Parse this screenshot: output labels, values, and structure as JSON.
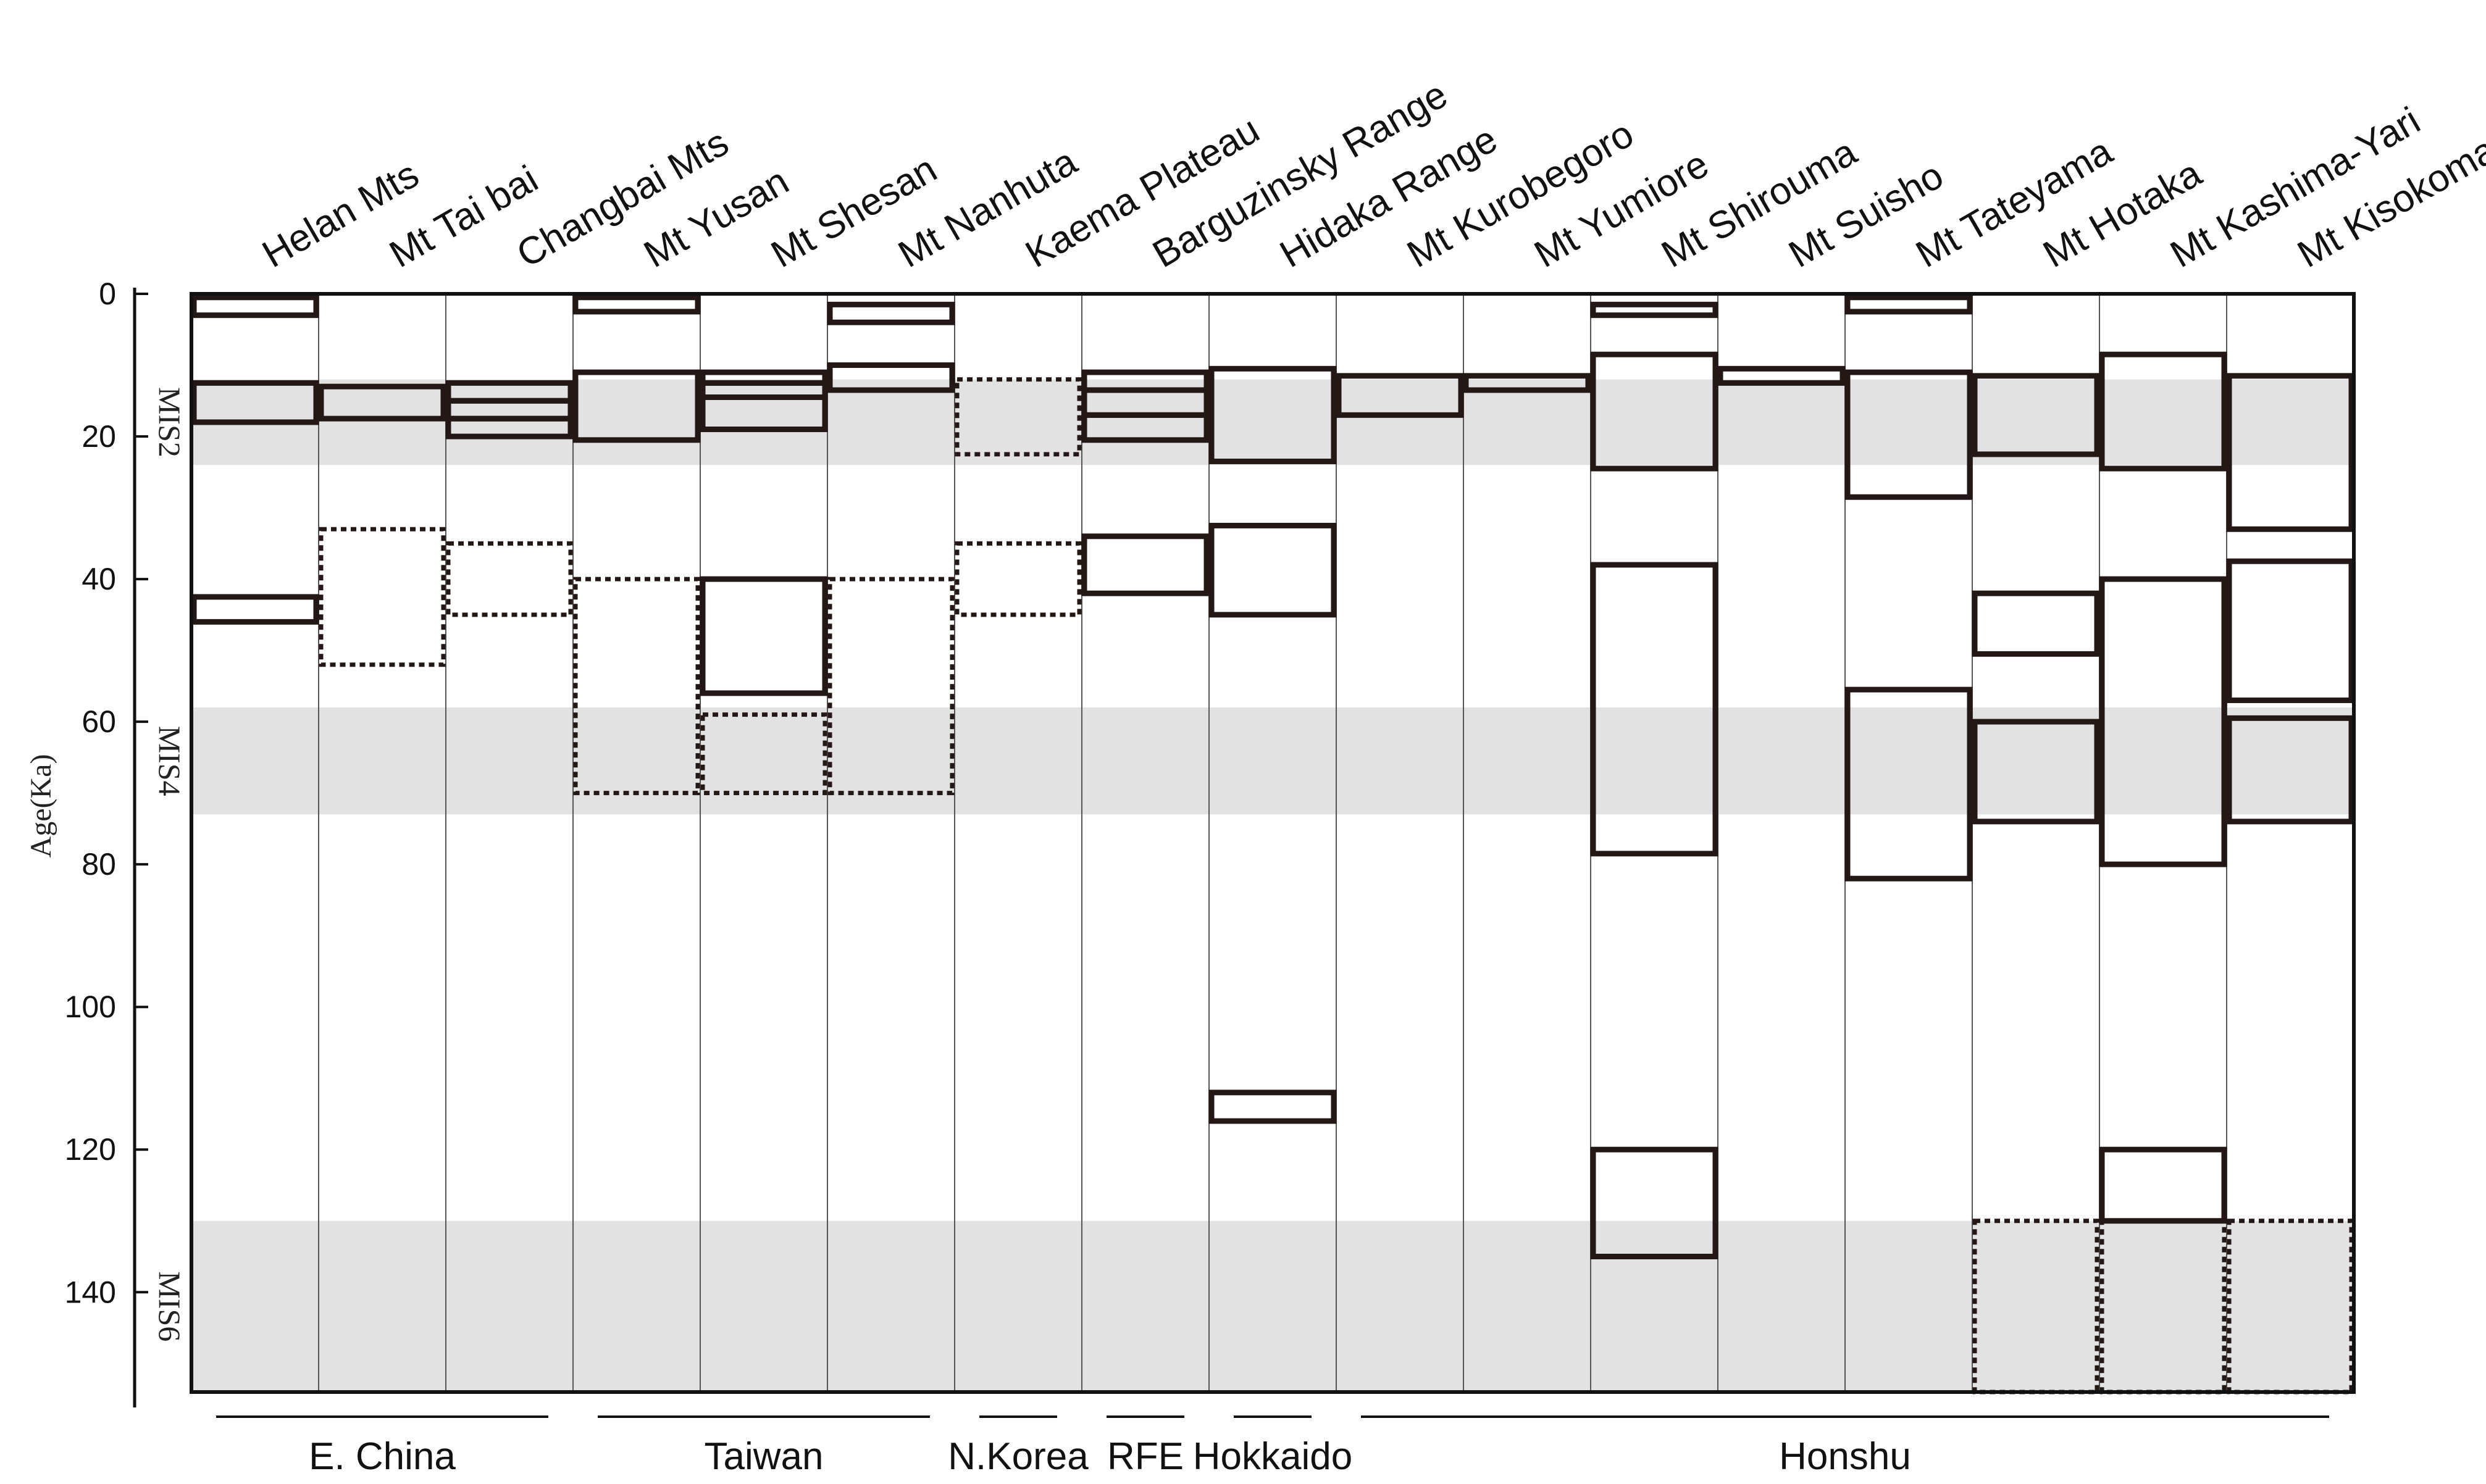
{
  "chart_data": {
    "type": "glaciation-chronology",
    "ylabel": "Age(Ka)",
    "ylim": [
      0,
      154
    ],
    "yticks": [
      0,
      20,
      40,
      60,
      80,
      100,
      120,
      140
    ],
    "mis_bands": [
      {
        "label": "MIS2",
        "from": 12,
        "to": 24
      },
      {
        "label": "MIS4",
        "from": 58,
        "to": 73
      },
      {
        "label": "MIS6",
        "from": 130,
        "to": 154
      }
    ],
    "columns": [
      {
        "name": "Helan Mts",
        "boxes": [
          {
            "from": 0.5,
            "to": 3,
            "style": "solid"
          },
          {
            "from": 12.5,
            "to": 18,
            "style": "solid"
          },
          {
            "from": 42.5,
            "to": 46,
            "style": "solid"
          }
        ]
      },
      {
        "name": "Mt Tai bai",
        "boxes": [
          {
            "from": 13,
            "to": 17.5,
            "style": "solid"
          },
          {
            "from": 33,
            "to": 52,
            "style": "dotted"
          }
        ]
      },
      {
        "name": "Changbai Mts",
        "boxes": [
          {
            "from": 12.5,
            "to": 15,
            "style": "solid"
          },
          {
            "from": 15,
            "to": 17.5,
            "style": "solid"
          },
          {
            "from": 17.5,
            "to": 20,
            "style": "solid"
          },
          {
            "from": 35,
            "to": 45,
            "style": "dotted"
          }
        ]
      },
      {
        "name": "Mt Yusan",
        "boxes": [
          {
            "from": 0.5,
            "to": 2.5,
            "style": "solid"
          },
          {
            "from": 11,
            "to": 20.5,
            "style": "solid"
          },
          {
            "from": 40,
            "to": 70,
            "style": "dotted"
          }
        ]
      },
      {
        "name": "Mt Shesan",
        "boxes": [
          {
            "from": 11,
            "to": 12.5,
            "style": "solid"
          },
          {
            "from": 12.5,
            "to": 14.5,
            "style": "solid"
          },
          {
            "from": 14.5,
            "to": 19,
            "style": "solid"
          },
          {
            "from": 40,
            "to": 56,
            "style": "solid"
          },
          {
            "from": 59,
            "to": 70,
            "style": "dotted"
          }
        ]
      },
      {
        "name": "Mt Nanhuta",
        "boxes": [
          {
            "from": 1.5,
            "to": 4,
            "style": "solid"
          },
          {
            "from": 10,
            "to": 13.5,
            "style": "solid"
          },
          {
            "from": 40,
            "to": 70,
            "style": "dotted"
          }
        ]
      },
      {
        "name": "Kaema Plateau",
        "boxes": [
          {
            "from": 12,
            "to": 22.5,
            "style": "dotted"
          },
          {
            "from": 35,
            "to": 45,
            "style": "dotted"
          }
        ]
      },
      {
        "name": "Barguzinsky Range",
        "boxes": [
          {
            "from": 11,
            "to": 13.5,
            "style": "solid"
          },
          {
            "from": 13.5,
            "to": 17,
            "style": "solid"
          },
          {
            "from": 17,
            "to": 20.5,
            "style": "solid"
          },
          {
            "from": 34,
            "to": 42,
            "style": "solid"
          }
        ]
      },
      {
        "name": "Hidaka Range",
        "boxes": [
          {
            "from": 10.5,
            "to": 23.5,
            "style": "solid"
          },
          {
            "from": 32.5,
            "to": 45,
            "style": "solid"
          },
          {
            "from": 112,
            "to": 116,
            "style": "solid"
          }
        ]
      },
      {
        "name": "Mt Kurobegoro",
        "boxes": [
          {
            "from": 11.5,
            "to": 17,
            "style": "solid"
          }
        ]
      },
      {
        "name": "Mt Yumiore",
        "boxes": [
          {
            "from": 11.5,
            "to": 13.5,
            "style": "solid"
          }
        ]
      },
      {
        "name": "Mt Shirouma",
        "boxes": [
          {
            "from": 1.5,
            "to": 3,
            "style": "solid"
          },
          {
            "from": 8.5,
            "to": 24.5,
            "style": "solid"
          },
          {
            "from": 38,
            "to": 78.5,
            "style": "solid"
          },
          {
            "from": 120,
            "to": 135,
            "style": "solid"
          }
        ]
      },
      {
        "name": "Mt Suisho",
        "boxes": [
          {
            "from": 10.5,
            "to": 12.5,
            "style": "solid"
          }
        ]
      },
      {
        "name": "Mt Tateyama",
        "boxes": [
          {
            "from": 0.5,
            "to": 2.5,
            "style": "solid"
          },
          {
            "from": 11,
            "to": 28.5,
            "style": "solid"
          },
          {
            "from": 55.5,
            "to": 82,
            "style": "solid"
          }
        ]
      },
      {
        "name": "Mt Hotaka",
        "boxes": [
          {
            "from": 11.5,
            "to": 22.5,
            "style": "solid"
          },
          {
            "from": 42,
            "to": 50.5,
            "style": "solid"
          },
          {
            "from": 60,
            "to": 74,
            "style": "solid"
          },
          {
            "from": 130,
            "to": 154,
            "style": "dotted"
          }
        ]
      },
      {
        "name": "Mt Kashima-Yari",
        "boxes": [
          {
            "from": 8.5,
            "to": 24.5,
            "style": "solid"
          },
          {
            "from": 40,
            "to": 80,
            "style": "solid"
          },
          {
            "from": 120,
            "to": 130,
            "style": "solid"
          },
          {
            "from": 130,
            "to": 154,
            "style": "dotted"
          }
        ]
      },
      {
        "name": "Mt Kisokoma",
        "boxes": [
          {
            "from": 11.5,
            "to": 33,
            "style": "solid"
          },
          {
            "from": 37.5,
            "to": 57,
            "style": "solid"
          },
          {
            "from": 59.5,
            "to": 74,
            "style": "solid"
          },
          {
            "from": 130,
            "to": 154,
            "style": "dotted"
          }
        ]
      }
    ],
    "regions": [
      {
        "label": "E. China",
        "first_col": 0,
        "last_col": 2
      },
      {
        "label": "Taiwan",
        "first_col": 3,
        "last_col": 5
      },
      {
        "label": "N.Korea",
        "first_col": 6,
        "last_col": 6
      },
      {
        "label": "RFE",
        "first_col": 7,
        "last_col": 7
      },
      {
        "label": "Hokkaido",
        "first_col": 8,
        "last_col": 8
      },
      {
        "label": "Honshu",
        "first_col": 9,
        "last_col": 16
      }
    ]
  }
}
